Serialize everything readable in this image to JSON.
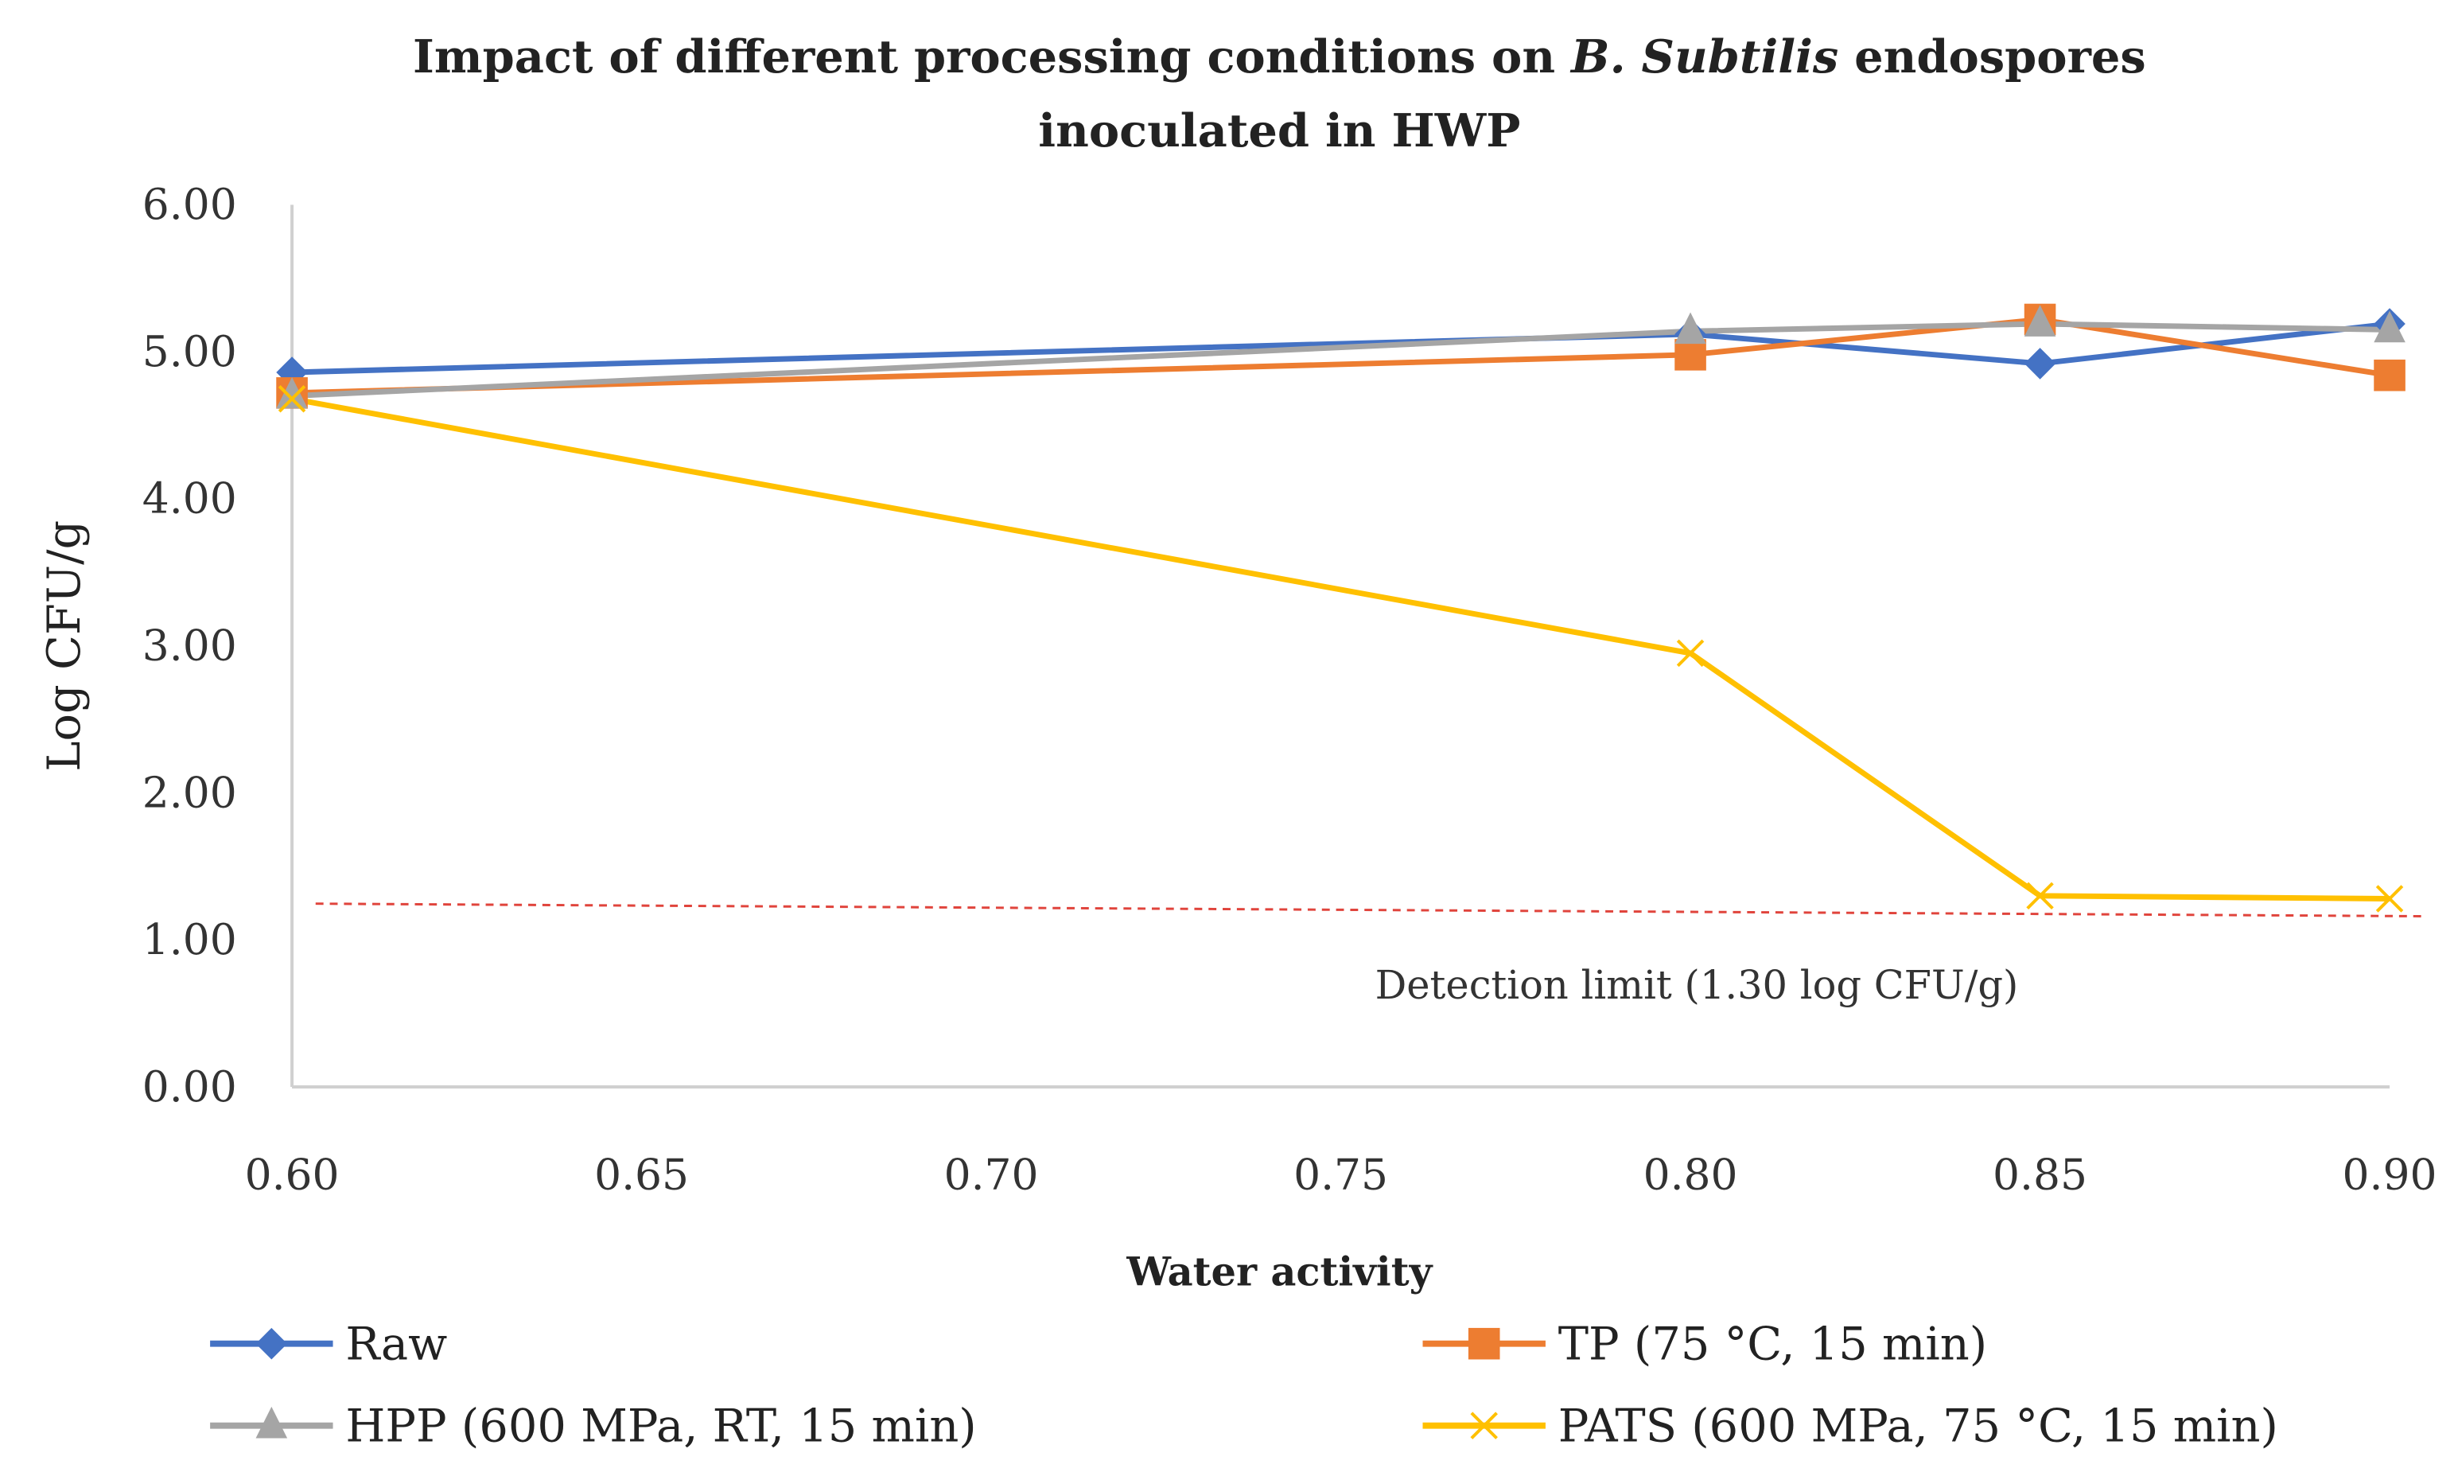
{
  "chart_data": {
    "type": "line",
    "title_parts": [
      "Impact of different processing conditions on ",
      "B. Subtilis",
      " endospores"
    ],
    "title_line2": "inoculated in HWP",
    "xlabel": "Water activity",
    "ylabel": "Log CFU/g",
    "xlim": [
      0.6,
      0.9
    ],
    "ylim": [
      0,
      6
    ],
    "x_ticks": [
      "0.60",
      "0.65",
      "0.70",
      "0.75",
      "0.80",
      "0.85",
      "0.90"
    ],
    "x_tick_values": [
      0.6,
      0.65,
      0.7,
      0.75,
      0.8,
      0.85,
      0.9
    ],
    "y_ticks": [
      "0.00",
      "1.00",
      "2.00",
      "3.00",
      "4.00",
      "5.00",
      "6.00"
    ],
    "y_tick_values": [
      0,
      1,
      2,
      3,
      4,
      5,
      6
    ],
    "x": [
      0.6,
      0.8,
      0.85,
      0.9
    ],
    "series": [
      {
        "name": "Raw",
        "color": "#4472C4",
        "marker": "diamond",
        "values": [
          4.86,
          5.12,
          4.92,
          5.19
        ]
      },
      {
        "name": "TP (75 °C, 15 min)",
        "color": "#ED7D31",
        "marker": "square",
        "values": [
          4.72,
          4.98,
          5.22,
          4.84
        ]
      },
      {
        "name": "HPP (600 MPa, RT, 15 min)",
        "color": "#A5A5A5",
        "marker": "triangle",
        "values": [
          4.7,
          5.14,
          5.19,
          5.15
        ]
      },
      {
        "name": "PATS (600 MPa, 75 °C, 15 min)",
        "color": "#FFC000",
        "marker": "x",
        "values": [
          4.68,
          2.95,
          1.3,
          1.28
        ]
      }
    ],
    "detection_limit": {
      "value": 1.3,
      "label": "Detection limit (1.30 log CFU/g)",
      "color": "#E0443C"
    },
    "grid": false,
    "legend_position": "bottom"
  }
}
